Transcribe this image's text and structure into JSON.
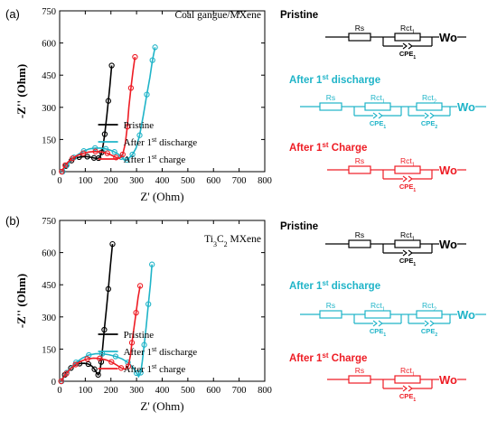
{
  "colors": {
    "pristine": "#000000",
    "discharge": "#1FB4C8",
    "charge": "#EE1C24"
  },
  "chart_data": [
    {
      "type": "scatter",
      "panel_label": "(a)",
      "title": "Coal gangue/MXene",
      "xlabel": "Z' (Ohm)",
      "ylabel": "-Z'' (Ohm)",
      "xlim": [
        0,
        800
      ],
      "ylim": [
        0,
        750
      ],
      "xticks": [
        0,
        100,
        200,
        300,
        400,
        500,
        600,
        700,
        800
      ],
      "yticks": [
        0,
        150,
        300,
        450,
        600,
        750
      ],
      "legend_position": "lower-right",
      "series": [
        {
          "name": "Pristine",
          "color_key": "pristine",
          "x": [
            10,
            16,
            24,
            34,
            46,
            60,
            76,
            92,
            108,
            122,
            134,
            144,
            152,
            158,
            164,
            170,
            176,
            184,
            190,
            196,
            203
          ],
          "y": [
            0,
            12,
            26,
            40,
            52,
            62,
            68,
            70,
            70,
            67,
            64,
            62,
            63,
            70,
            90,
            125,
            175,
            260,
            330,
            400,
            495
          ]
        },
        {
          "name": "After 1st discharge",
          "color_key": "discharge",
          "x": [
            12,
            18,
            28,
            40,
            56,
            74,
            94,
            116,
            138,
            160,
            180,
            198,
            214,
            228,
            240,
            252,
            262,
            272,
            284,
            298,
            312,
            326,
            340,
            352,
            362,
            372
          ],
          "y": [
            0,
            14,
            30,
            48,
            66,
            82,
            96,
            106,
            110,
            110,
            106,
            100,
            92,
            82,
            68,
            55,
            55,
            65,
            80,
            110,
            170,
            260,
            360,
            440,
            520,
            580
          ]
        },
        {
          "name": "After 1st charge",
          "color_key": "charge",
          "x": [
            8,
            14,
            22,
            34,
            50,
            70,
            92,
            116,
            140,
            164,
            186,
            204,
            220,
            234,
            246,
            256,
            264,
            270,
            278,
            286,
            294
          ],
          "y": [
            0,
            14,
            30,
            46,
            62,
            76,
            86,
            92,
            94,
            92,
            86,
            76,
            66,
            62,
            80,
            130,
            210,
            300,
            390,
            470,
            535
          ]
        }
      ]
    },
    {
      "type": "scatter",
      "panel_label": "(b)",
      "title": "Ti3C2 MXene",
      "xlabel": "Z' (Ohm)",
      "ylabel": "-Z'' (Ohm)",
      "xlim": [
        0,
        800
      ],
      "ylim": [
        0,
        750
      ],
      "xticks": [
        0,
        100,
        200,
        300,
        400,
        500,
        600,
        700,
        800
      ],
      "yticks": [
        0,
        150,
        300,
        450,
        600,
        750
      ],
      "legend_position": "lower-right",
      "series": [
        {
          "name": "Pristine",
          "color_key": "pristine",
          "x": [
            6,
            12,
            20,
            30,
            44,
            60,
            78,
            96,
            112,
            126,
            136,
            144,
            150,
            156,
            162,
            168,
            174,
            182,
            190,
            198,
            206
          ],
          "y": [
            0,
            14,
            30,
            46,
            62,
            74,
            82,
            84,
            80,
            70,
            56,
            40,
            30,
            40,
            90,
            160,
            240,
            330,
            430,
            540,
            640
          ]
        },
        {
          "name": "After 1st discharge",
          "color_key": "discharge",
          "x": [
            8,
            16,
            28,
            44,
            64,
            88,
            114,
            140,
            166,
            192,
            218,
            244,
            266,
            286,
            300,
            308,
            316,
            322,
            330,
            338,
            346,
            354,
            360
          ],
          "y": [
            0,
            18,
            40,
            64,
            88,
            108,
            122,
            128,
            128,
            124,
            116,
            104,
            88,
            64,
            38,
            22,
            40,
            90,
            170,
            260,
            360,
            450,
            545
          ]
        },
        {
          "name": "After 1st charge",
          "color_key": "charge",
          "x": [
            6,
            14,
            26,
            42,
            62,
            84,
            108,
            132,
            156,
            180,
            202,
            222,
            240,
            256,
            268,
            276,
            282,
            290,
            298,
            306,
            314
          ],
          "y": [
            0,
            16,
            36,
            58,
            78,
            94,
            104,
            108,
            106,
            100,
            90,
            76,
            62,
            56,
            70,
            120,
            180,
            250,
            320,
            390,
            445
          ]
        }
      ]
    }
  ],
  "circuits": [
    {
      "title": "Pristine",
      "color_key": "pristine",
      "labels": {
        "rs": "Rs",
        "rct1": "Rct1",
        "cpe1": "CPE1",
        "wo": "Wo"
      }
    },
    {
      "title": "After 1st discharge",
      "color_key": "discharge",
      "labels": {
        "rs": "Rs",
        "rct1": "Rct1",
        "rct2": "Rct2",
        "cpe1": "CPE1",
        "cpe2": "CPE2",
        "wo": "Wo"
      }
    },
    {
      "title": "After 1st Charge",
      "color_key": "charge",
      "labels": {
        "rs": "Rs",
        "rct1": "Rct1",
        "cpe1": "CPE1",
        "wo": "Wo"
      }
    },
    {
      "title": "Pristine",
      "color_key": "pristine",
      "labels": {
        "rs": "Rs",
        "rct1": "Rct1",
        "cpe1": "CPE1",
        "wo": "Wo"
      }
    },
    {
      "title": "After 1st discharge",
      "color_key": "discharge",
      "labels": {
        "rs": "Rs",
        "rct1": "Rct1",
        "rct2": "Rct2",
        "cpe1": "CPE1",
        "cpe2": "CPE2",
        "wo": "Wo"
      }
    },
    {
      "title": "After 1st Charge",
      "color_key": "charge",
      "labels": {
        "rs": "Rs",
        "rct1": "Rct1",
        "cpe1": "CPE1",
        "wo": "Wo"
      }
    }
  ]
}
